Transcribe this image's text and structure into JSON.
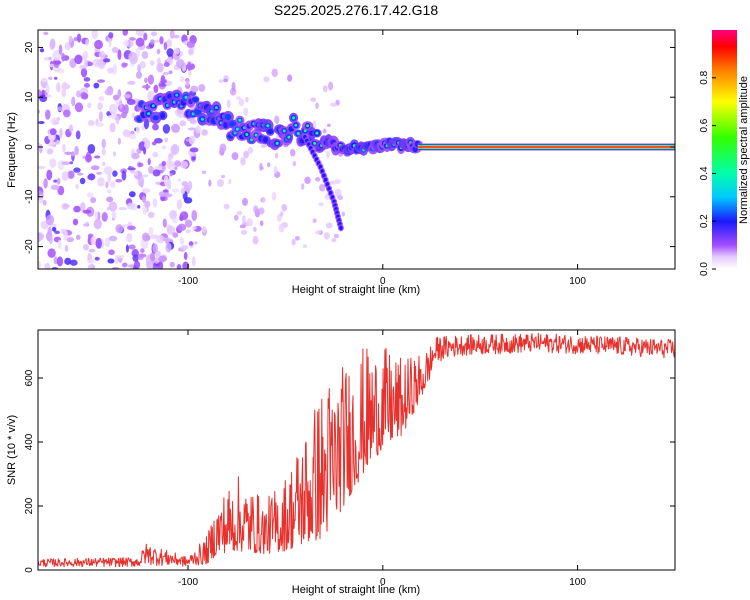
{
  "title": "S225.2025.276.17.42.G18",
  "chart_data": [
    {
      "type": "heatmap",
      "panel": "spectrogram",
      "xlabel": "Height of straight line (km)",
      "ylabel": "Frequency (Hz)",
      "xlim": [
        -177,
        150
      ],
      "ylim": [
        -24.5,
        23.5
      ],
      "x_ticks": [
        -100,
        0,
        100
      ],
      "y_ticks": [
        -20,
        -10,
        0,
        10,
        20
      ],
      "grid": false,
      "features": {
        "noise_region_km": [
          -177,
          -95
        ],
        "ridge_points": [
          {
            "x": -125,
            "f": 6.5
          },
          {
            "x": -110,
            "f": 9
          },
          {
            "x": -100,
            "f": 8
          },
          {
            "x": -90,
            "f": 7
          },
          {
            "x": -80,
            "f": 4.5
          },
          {
            "x": -70,
            "f": 3.5
          },
          {
            "x": -60,
            "f": 2.5
          },
          {
            "x": -50,
            "f": 3
          },
          {
            "x": -45,
            "f": 4
          },
          {
            "x": -38,
            "f": 2.5
          },
          {
            "x": -30,
            "f": 1.5
          },
          {
            "x": -20,
            "f": -0.5
          },
          {
            "x": -10,
            "f": 0
          },
          {
            "x": 0,
            "f": 0.5
          },
          {
            "x": 10,
            "f": 0.5
          },
          {
            "x": 18,
            "f": 0
          }
        ],
        "secondary_branch": [
          {
            "x": -40,
            "f": 2
          },
          {
            "x": -32,
            "f": -4
          },
          {
            "x": -25,
            "f": -11
          },
          {
            "x": -21,
            "f": -17
          }
        ],
        "steady_line": {
          "from_km": 18,
          "to_km": 150,
          "f": 0
        }
      }
    },
    {
      "type": "colorbar",
      "label": "Normalized spectral amplitude",
      "range": [
        0,
        1
      ],
      "ticks": [
        "0.0",
        "0.2",
        "0.4",
        "0.6",
        "0.8"
      ]
    },
    {
      "type": "line",
      "panel": "snr",
      "xlabel": "Height of straight line (km)",
      "ylabel": "SNR (10 * v/v)",
      "xlim": [
        -177,
        150
      ],
      "ylim": [
        0,
        750
      ],
      "x_ticks": [
        -100,
        0,
        100
      ],
      "y_ticks": [
        0,
        200,
        400,
        600
      ],
      "color": "#e8302c",
      "envelope": [
        {
          "x": -177,
          "low": 10,
          "high": 35
        },
        {
          "x": -125,
          "low": 10,
          "high": 40
        },
        {
          "x": -122,
          "low": 15,
          "high": 85
        },
        {
          "x": -100,
          "low": 10,
          "high": 40
        },
        {
          "x": -90,
          "low": 20,
          "high": 110
        },
        {
          "x": -85,
          "low": 50,
          "high": 220
        },
        {
          "x": -75,
          "low": 60,
          "high": 300
        },
        {
          "x": -60,
          "low": 50,
          "high": 220
        },
        {
          "x": -50,
          "low": 60,
          "high": 300
        },
        {
          "x": -40,
          "low": 80,
          "high": 450
        },
        {
          "x": -30,
          "low": 100,
          "high": 600
        },
        {
          "x": -20,
          "low": 200,
          "high": 650
        },
        {
          "x": -10,
          "low": 300,
          "high": 700
        },
        {
          "x": 0,
          "low": 380,
          "high": 700
        },
        {
          "x": 10,
          "low": 420,
          "high": 660
        },
        {
          "x": 20,
          "low": 540,
          "high": 680
        },
        {
          "x": 28,
          "low": 650,
          "high": 730
        },
        {
          "x": 40,
          "low": 670,
          "high": 735
        },
        {
          "x": 80,
          "low": 680,
          "high": 740
        },
        {
          "x": 120,
          "low": 670,
          "high": 730
        },
        {
          "x": 150,
          "low": 660,
          "high": 720
        }
      ]
    }
  ]
}
